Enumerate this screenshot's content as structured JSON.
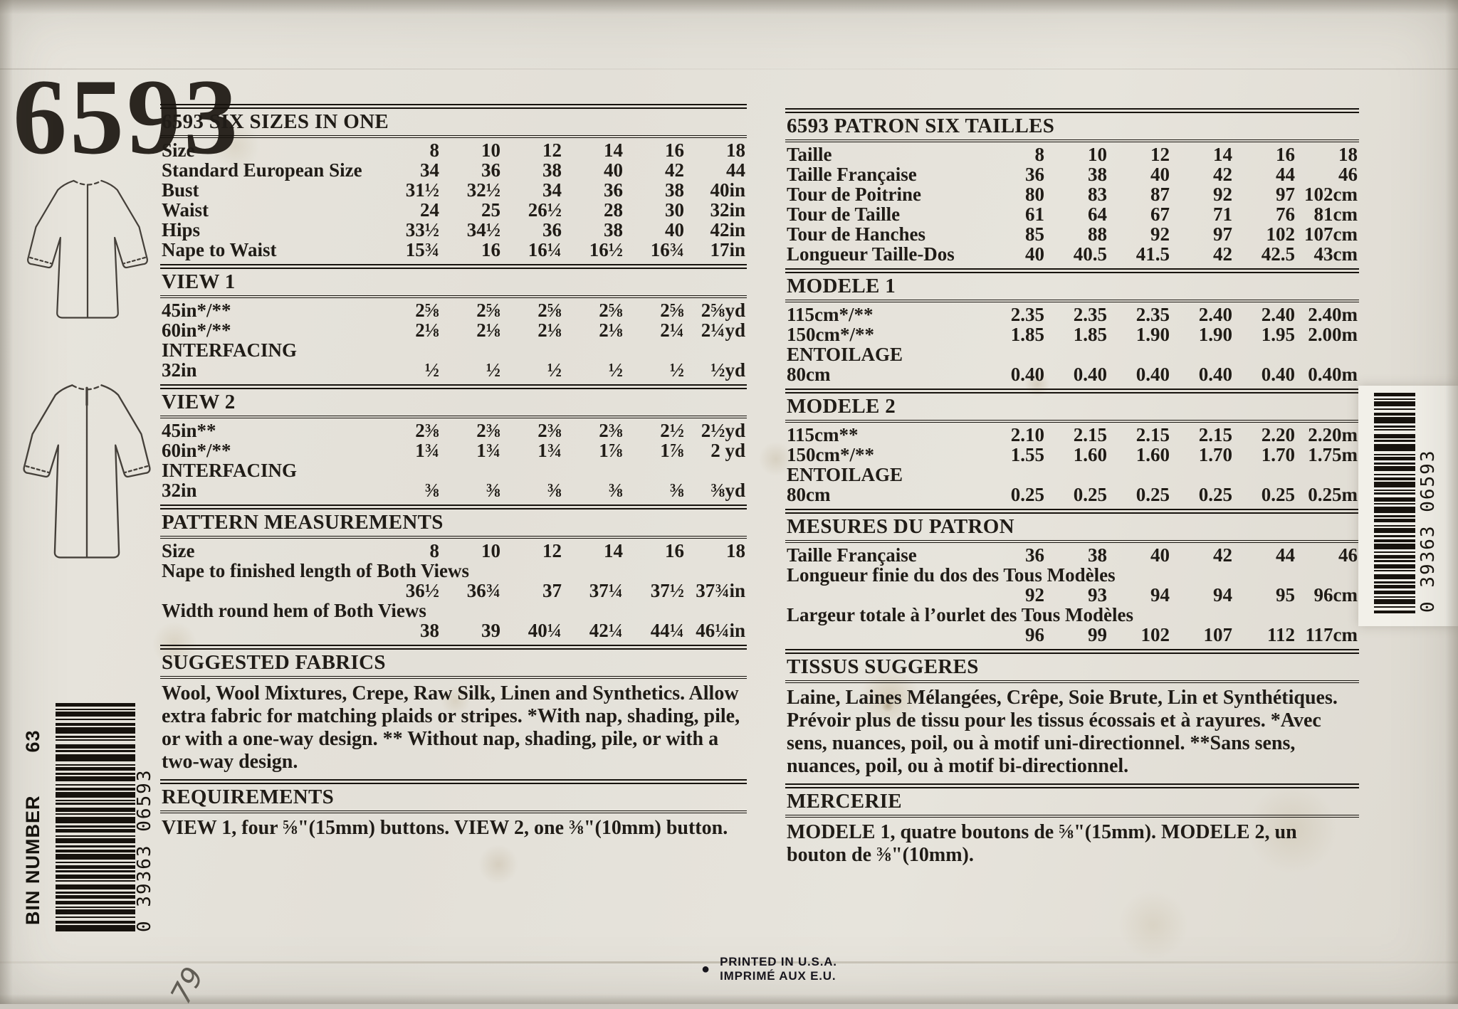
{
  "pattern_number": "6593",
  "handwritten_note": "79",
  "bin": {
    "label": "BIN NUMBER",
    "number": "63"
  },
  "barcodes": {
    "left_digits": "0 39363 06593",
    "right_digits": "0 39363 06593"
  },
  "footer": {
    "bullet": "●",
    "line1": "PRINTED IN U.S.A.",
    "line2": "IMPRIMÉ AUX E.U."
  },
  "left": {
    "size_table": {
      "title": "6593 SIX SIZES IN ONE",
      "rows": [
        {
          "label": "Size",
          "values": [
            "8",
            "10",
            "12",
            "14",
            "16",
            "18"
          ]
        },
        {
          "label": "Standard European Size",
          "values": [
            "34",
            "36",
            "38",
            "40",
            "42",
            "44"
          ]
        },
        {
          "label": "Bust",
          "values": [
            "31½",
            "32½",
            "34",
            "36",
            "38",
            "40in"
          ]
        },
        {
          "label": "Waist",
          "values": [
            "24",
            "25",
            "26½",
            "28",
            "30",
            "32in"
          ]
        },
        {
          "label": "Hips",
          "values": [
            "33½",
            "34½",
            "36",
            "38",
            "40",
            "42in"
          ]
        },
        {
          "label": "Nape to Waist",
          "values": [
            "15¾",
            "16",
            "16¼",
            "16½",
            "16¾",
            "17in"
          ]
        }
      ]
    },
    "view1": {
      "title": "VIEW 1",
      "rows": [
        {
          "label": "45in*/**",
          "values": [
            "2⅝",
            "2⅝",
            "2⅝",
            "2⅝",
            "2⅝",
            "2⅝yd"
          ]
        },
        {
          "label": "60in*/**",
          "values": [
            "2⅛",
            "2⅛",
            "2⅛",
            "2⅛",
            "2¼",
            "2¼yd"
          ]
        },
        {
          "label": "INTERFACING"
        },
        {
          "label": "32in",
          "values": [
            "½",
            "½",
            "½",
            "½",
            "½",
            "½yd"
          ]
        }
      ]
    },
    "view2": {
      "title": "VIEW 2",
      "rows": [
        {
          "label": "45in**",
          "values": [
            "2⅜",
            "2⅜",
            "2⅜",
            "2⅜",
            "2½",
            "2½yd"
          ]
        },
        {
          "label": "60in*/**",
          "values": [
            "1¾",
            "1¾",
            "1¾",
            "1⅞",
            "1⅞",
            "2 yd"
          ]
        },
        {
          "label": "INTERFACING"
        },
        {
          "label": "32in",
          "values": [
            "⅜",
            "⅜",
            "⅜",
            "⅜",
            "⅜",
            "⅜yd"
          ]
        }
      ]
    },
    "measurements": {
      "title": "PATTERN MEASUREMENTS",
      "rows": [
        {
          "label": "Size",
          "values": [
            "8",
            "10",
            "12",
            "14",
            "16",
            "18"
          ]
        },
        {
          "label": "Nape to finished length of Both Views"
        },
        {
          "label": "",
          "values": [
            "36½",
            "36¾",
            "37",
            "37¼",
            "37½",
            "37¾in"
          ]
        },
        {
          "label": "Width round hem of Both Views"
        },
        {
          "label": "",
          "values": [
            "38",
            "39",
            "40¼",
            "42¼",
            "44¼",
            "46¼in"
          ]
        }
      ]
    },
    "fabrics": {
      "title": "SUGGESTED FABRICS",
      "text": "Wool, Wool Mixtures, Crepe, Raw Silk, Linen and Synthetics. Allow extra fabric for matching plaids or stripes. *With nap, shading, pile, or with a one-way design. ** Without nap, shading, pile, or with a two-way design."
    },
    "requirements": {
      "title": "REQUIREMENTS",
      "text": "VIEW 1, four ⅝\"(15mm) buttons. VIEW 2, one ⅜\"(10mm) button."
    }
  },
  "right": {
    "size_table": {
      "title": "6593 PATRON SIX TAILLES",
      "rows": [
        {
          "label": "Taille",
          "values": [
            "8",
            "10",
            "12",
            "14",
            "16",
            "18"
          ]
        },
        {
          "label": "Taille Française",
          "values": [
            "36",
            "38",
            "40",
            "42",
            "44",
            "46"
          ]
        },
        {
          "label": "Tour de Poitrine",
          "values": [
            "80",
            "83",
            "87",
            "92",
            "97",
            "102cm"
          ]
        },
        {
          "label": "Tour de Taille",
          "values": [
            "61",
            "64",
            "67",
            "71",
            "76",
            "81cm"
          ]
        },
        {
          "label": "Tour de Hanches",
          "values": [
            "85",
            "88",
            "92",
            "97",
            "102",
            "107cm"
          ]
        },
        {
          "label": "Longueur Taille-Dos",
          "values": [
            "40",
            "40.5",
            "41.5",
            "42",
            "42.5",
            "43cm"
          ]
        }
      ]
    },
    "modele1": {
      "title": "MODELE 1",
      "rows": [
        {
          "label": "115cm*/**",
          "values": [
            "2.35",
            "2.35",
            "2.35",
            "2.40",
            "2.40",
            "2.40m"
          ]
        },
        {
          "label": "150cm*/**",
          "values": [
            "1.85",
            "1.85",
            "1.90",
            "1.90",
            "1.95",
            "2.00m"
          ]
        },
        {
          "label": "ENTOILAGE"
        },
        {
          "label": "80cm",
          "values": [
            "0.40",
            "0.40",
            "0.40",
            "0.40",
            "0.40",
            "0.40m"
          ]
        }
      ]
    },
    "modele2": {
      "title": "MODELE 2",
      "rows": [
        {
          "label": "115cm**",
          "values": [
            "2.10",
            "2.15",
            "2.15",
            "2.15",
            "2.20",
            "2.20m"
          ]
        },
        {
          "label": "150cm*/**",
          "values": [
            "1.55",
            "1.60",
            "1.60",
            "1.70",
            "1.70",
            "1.75m"
          ]
        },
        {
          "label": "ENTOILAGE"
        },
        {
          "label": "80cm",
          "values": [
            "0.25",
            "0.25",
            "0.25",
            "0.25",
            "0.25",
            "0.25m"
          ]
        }
      ]
    },
    "mesures": {
      "title": "MESURES DU PATRON",
      "rows": [
        {
          "label": "Taille Française",
          "values": [
            "36",
            "38",
            "40",
            "42",
            "44",
            "46"
          ]
        },
        {
          "label": "Longueur finie du dos des Tous Modèles"
        },
        {
          "label": "",
          "values": [
            "92",
            "93",
            "94",
            "94",
            "95",
            "96cm"
          ]
        },
        {
          "label": "Largeur totale à l’ourlet des Tous Modèles"
        },
        {
          "label": "",
          "values": [
            "96",
            "99",
            "102",
            "107",
            "112",
            "117cm"
          ]
        }
      ]
    },
    "tissus": {
      "title": "TISSUS SUGGERES",
      "text": "Laine, Laines Mélangées, Crêpe, Soie Brute, Lin et Synthétiques. Prévoir plus de tissu pour les tissus écossais et à rayures. *Avec sens, nuances, poil, ou à motif uni-directionnel. **Sans sens, nuances, poil, ou à motif bi-directionnel."
    },
    "mercerie": {
      "title": "MERCERIE",
      "text": "MODELE 1, quatre boutons de ⅝\"(15mm). MODELE 2, un bouton de ⅜\"(10mm)."
    }
  }
}
